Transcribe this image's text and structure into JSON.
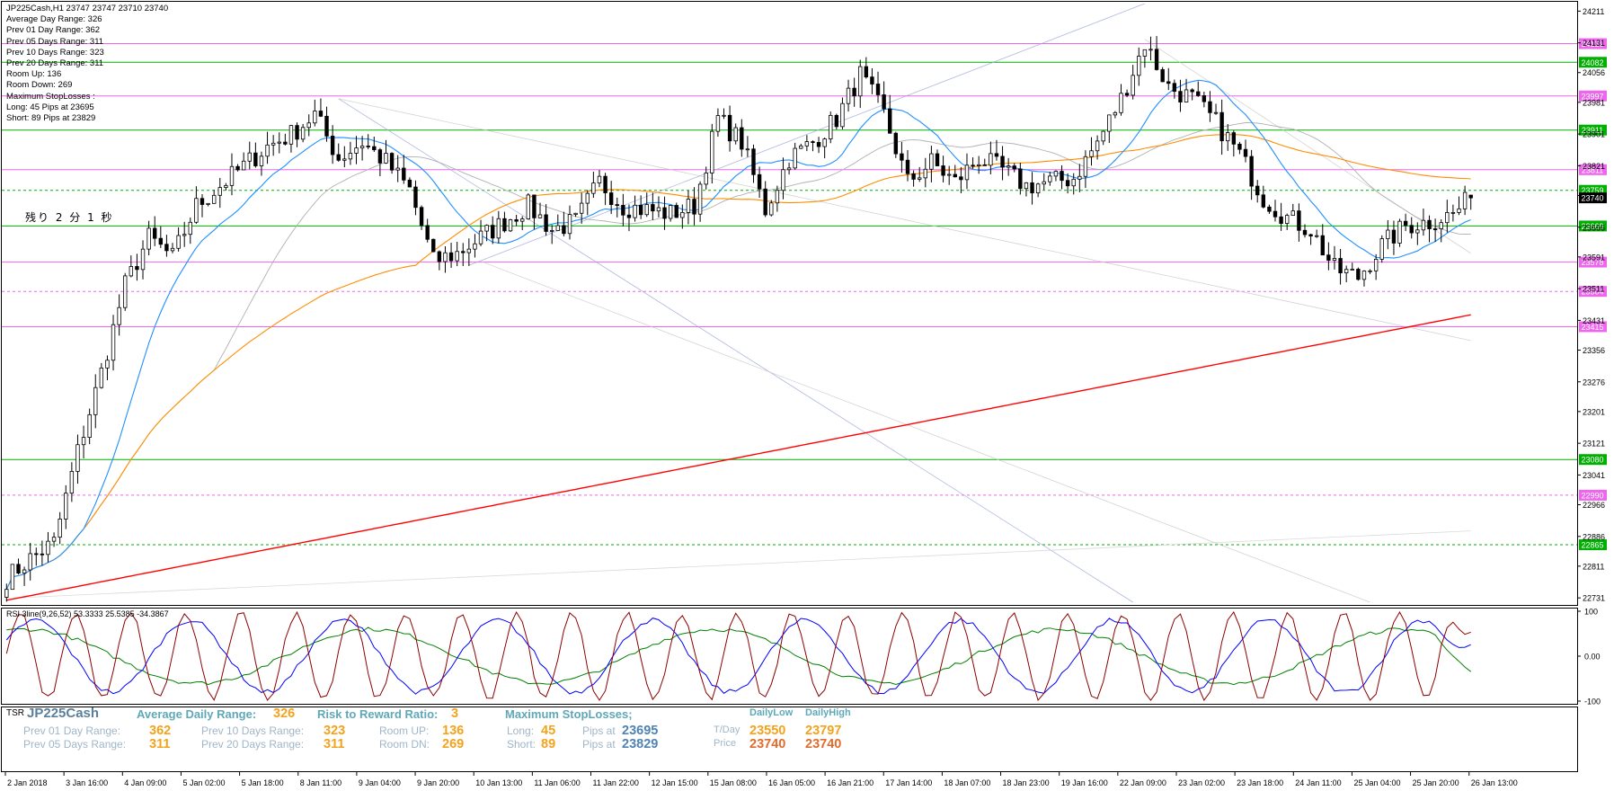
{
  "chart_header": "JP225Cash,H1  23747 23747 23710 23740",
  "info_lines": [
    "Average Day  Range: 326",
    "Prev 01  Day  Range: 362",
    "Prev 05  Days Range: 311",
    "Prev 10  Days Range: 323",
    "Prev 20  Days Range: 311",
    "Room Up:  136",
    "Room Down: 269",
    "Maximum StopLosses :",
    "Long:  45 Pips at 23695",
    "Short: 89 Pips at 23829"
  ],
  "countdown": "残り 2 分 1 秒",
  "rsi_label": "RSI 3line(9,26,52) 53.3333 25.5385 -34.3867",
  "colors": {
    "candle": "#000000",
    "ma_fast": "#1e90ff",
    "ma_mid": "#ff8c00",
    "ma_slow": "#ff0000",
    "ma_grey": "#b0b0b0",
    "level_green": "#00b000",
    "level_magenta": "#ee66ee",
    "rsi_fast": "#8b0000",
    "rsi_mid": "#0000ff",
    "rsi_slow": "#008000"
  },
  "tsr": {
    "tag": "TSR",
    "symbol": "JP225Cash",
    "avg_label": "Average Daily Range:",
    "avg_value": "326",
    "prev01_label": "Prev 01 Day Range:",
    "prev01_value": "362",
    "prev05_label": "Prev 05 Days Range:",
    "prev05_value": "311",
    "prev10_label": "Prev 10 Days Range:",
    "prev10_value": "323",
    "prev20_label": "Prev 20 Days Range:",
    "prev20_value": "311",
    "rr_label": "Risk to Reward Ratio:",
    "rr_value": "3",
    "room_up_label": "Room UP:",
    "room_up_value": "136",
    "room_dn_label": "Room DN:",
    "room_dn_value": "269",
    "maxsl_label": "Maximum StopLosses;",
    "long_label": "Long:",
    "long_pips": "45",
    "long_at_label": "Pips at",
    "long_price": "23695",
    "short_label": "Short:",
    "short_pips": "89",
    "short_at_label": "Pips at",
    "short_price": "23829",
    "tday_label": "T/Day",
    "price_label": "Price",
    "daily_low_label": "DailyLow",
    "daily_high_label": "DailyHigh",
    "tday_low": "23550",
    "tday_high": "23797",
    "price_low": "23740",
    "price_high": "23740"
  },
  "chart_data": [
    {
      "type": "candlestick",
      "symbol": "JP225Cash",
      "timeframe": "H1",
      "ohlc_last": {
        "open": 23747,
        "high": 23747,
        "low": 23710,
        "close": 23740
      },
      "current_price": 23740,
      "y_ticks": [
        24211,
        24131,
        24056,
        23981,
        23901,
        23821,
        23746,
        23666,
        23591,
        23511,
        23431,
        23356,
        23276,
        23201,
        23121,
        23041,
        22966,
        22886,
        22811,
        22731
      ],
      "ylim": [
        22720,
        24230
      ],
      "x_ticks": [
        "2 Jan 2018",
        "3 Jan 16:00",
        "4 Jan 09:00",
        "5 Jan 02:00",
        "5 Jan 18:00",
        "8 Jan 11:00",
        "9 Jan 04:00",
        "9 Jan 20:00",
        "10 Jan 13:00",
        "11 Jan 06:00",
        "11 Jan 22:00",
        "12 Jan 15:00",
        "15 Jan 08:00",
        "16 Jan 05:00",
        "16 Jan 21:00",
        "17 Jan 14:00",
        "18 Jan 07:00",
        "18 Jan 23:00",
        "19 Jan 16:00",
        "22 Jan 09:00",
        "23 Jan 02:00",
        "23 Jan 18:00",
        "24 Jan 11:00",
        "25 Jan 04:00",
        "25 Jan 20:00",
        "26 Jan 13:00"
      ],
      "price_levels": [
        {
          "value": 24129,
          "kind": "magenta"
        },
        {
          "value": 24082,
          "kind": "green"
        },
        {
          "value": 23997,
          "kind": "magenta"
        },
        {
          "value": 23911,
          "kind": "green"
        },
        {
          "value": 23811,
          "kind": "magenta"
        },
        {
          "value": 23759,
          "kind": "green-dashed"
        },
        {
          "value": 23669,
          "kind": "green"
        },
        {
          "value": 23578,
          "kind": "magenta"
        },
        {
          "value": 23504,
          "kind": "magenta-dashed"
        },
        {
          "value": 23415,
          "kind": "magenta"
        },
        {
          "value": 23080,
          "kind": "green"
        },
        {
          "value": 22990,
          "kind": "magenta-dashed"
        },
        {
          "value": 22865,
          "kind": "green-dashed"
        }
      ],
      "price_anchors": [
        [
          0,
          22780
        ],
        [
          4,
          22830
        ],
        [
          8,
          22870
        ],
        [
          12,
          23100
        ],
        [
          16,
          23300
        ],
        [
          20,
          23520
        ],
        [
          24,
          23640
        ],
        [
          28,
          23590
        ],
        [
          32,
          23720
        ],
        [
          36,
          23770
        ],
        [
          40,
          23820
        ],
        [
          44,
          23870
        ],
        [
          48,
          23900
        ],
        [
          52,
          23950
        ],
        [
          56,
          23840
        ],
        [
          60,
          23880
        ],
        [
          64,
          23830
        ],
        [
          68,
          23760
        ],
        [
          72,
          23580
        ],
        [
          76,
          23600
        ],
        [
          80,
          23640
        ],
        [
          84,
          23680
        ],
        [
          88,
          23720
        ],
        [
          92,
          23660
        ],
        [
          96,
          23680
        ],
        [
          100,
          23780
        ],
        [
          104,
          23720
        ],
        [
          108,
          23710
        ],
        [
          112,
          23700
        ],
        [
          116,
          23720
        ],
        [
          120,
          23940
        ],
        [
          124,
          23880
        ],
        [
          128,
          23710
        ],
        [
          132,
          23840
        ],
        [
          136,
          23880
        ],
        [
          140,
          23940
        ],
        [
          144,
          24050
        ],
        [
          148,
          23950
        ],
        [
          152,
          23780
        ],
        [
          156,
          23830
        ],
        [
          160,
          23780
        ],
        [
          164,
          23840
        ],
        [
          168,
          23810
        ],
        [
          172,
          23770
        ],
        [
          176,
          23780
        ],
        [
          180,
          23790
        ],
        [
          184,
          23880
        ],
        [
          188,
          23990
        ],
        [
          192,
          24130
        ],
        [
          196,
          24020
        ],
        [
          200,
          23990
        ],
        [
          204,
          23930
        ],
        [
          208,
          23850
        ],
        [
          212,
          23740
        ],
        [
          216,
          23690
        ],
        [
          220,
          23660
        ],
        [
          224,
          23560
        ],
        [
          228,
          23540
        ],
        [
          232,
          23620
        ],
        [
          236,
          23670
        ],
        [
          240,
          23680
        ],
        [
          244,
          23700
        ],
        [
          247,
          23740
        ]
      ],
      "rsi": {
        "label": "RSI 3line(9,26,52)",
        "ylim": [
          -100,
          100
        ],
        "y_ticks": [
          100,
          0,
          -100
        ],
        "values": [
          53.3333,
          25.5385,
          -34.3867
        ]
      }
    }
  ]
}
